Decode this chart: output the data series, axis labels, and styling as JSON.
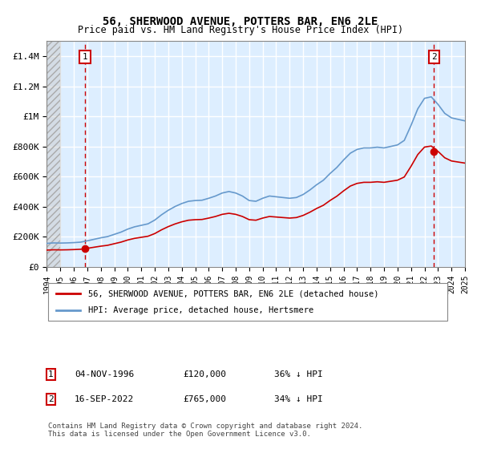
{
  "title": "56, SHERWOOD AVENUE, POTTERS BAR, EN6 2LE",
  "subtitle": "Price paid vs. HM Land Registry's House Price Index (HPI)",
  "legend_line1": "56, SHERWOOD AVENUE, POTTERS BAR, EN6 2LE (detached house)",
  "legend_line2": "HPI: Average price, detached house, Hertsmere",
  "annotation1_label": "1",
  "annotation1_date": "04-NOV-1996",
  "annotation1_price": "£120,000",
  "annotation1_hpi": "36% ↓ HPI",
  "annotation2_label": "2",
  "annotation2_date": "16-SEP-2022",
  "annotation2_price": "£765,000",
  "annotation2_hpi": "34% ↓ HPI",
  "footer": "Contains HM Land Registry data © Crown copyright and database right 2024.\nThis data is licensed under the Open Government Licence v3.0.",
  "ylim": [
    0,
    1500000
  ],
  "yticks": [
    0,
    200000,
    400000,
    600000,
    800000,
    1000000,
    1200000,
    1400000
  ],
  "ytick_labels": [
    "£0",
    "£200K",
    "£400K",
    "£600K",
    "£800K",
    "£1M",
    "£1.2M",
    "£1.4M"
  ],
  "red_color": "#cc0000",
  "blue_color": "#6699cc",
  "background_plot": "#ddeeff",
  "background_hatch": "#cccccc",
  "grid_color": "#ffffff",
  "marker1_x": 1996.83,
  "marker1_y": 120000,
  "marker2_x": 2022.7,
  "marker2_y": 765000,
  "xmin": 1994,
  "xmax": 2025
}
